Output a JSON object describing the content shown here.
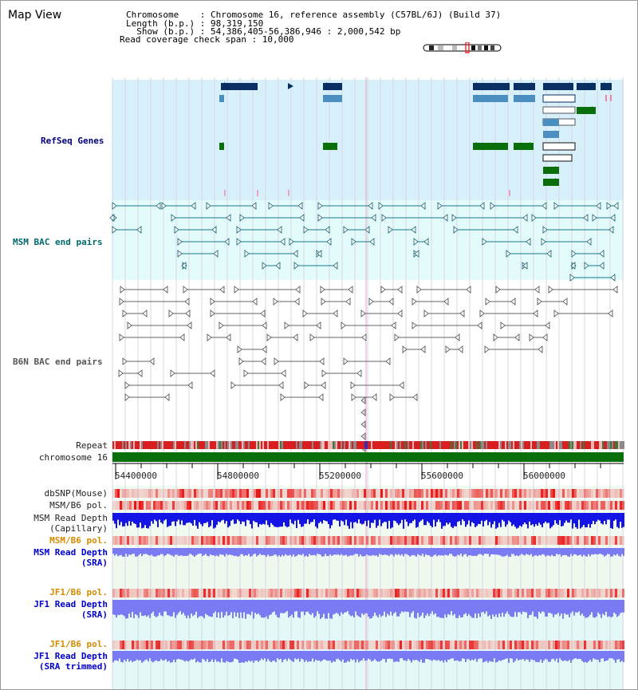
{
  "title": "Map View",
  "info_lines": [
    "Chromosome    : Chromosome 16, reference assembly (C57BL/6J) (Build 37)",
    "Length (b.p.) : 98,319,150",
    "  Show (b.p.) : 54,386,405-56,386,946 : 2,000,542 bp",
    "Read coverage check span : 10,000"
  ],
  "tracks": {
    "refseq": "RefSeq Genes",
    "msm_bac": "MSM BAC end pairs",
    "b6n_bac": "B6N BAC end pairs",
    "repeat": "Repeat",
    "chromosome": "chromosome 16",
    "dbsnp": "dbSNP(Mouse)",
    "msm_b6_pol": "MSM/B6 pol.",
    "msm_depth_cap_1": "MSM Read Depth",
    "msm_depth_cap_2": "(Capillary)",
    "msm_b6_pol_2": "MSM/B6 pol.",
    "msm_depth_sra_1": "MSM Read Depth",
    "msm_depth_sra_2": "(SRA)",
    "jf1_b6_pol": "JF1/B6 pol.",
    "jf1_depth_sra_1": "JF1 Read Depth",
    "jf1_depth_sra_2": "(SRA)",
    "jf1_b6_pol_2": "JF1/B6 pol.",
    "jf1_depth_trim_1": "JF1 Read Depth",
    "jf1_depth_trim_2": "(SRA trimmed)"
  },
  "ruler_ticks": [
    "54400000",
    "54800000",
    "55200000",
    "55600000",
    "56000000"
  ],
  "colors": {
    "refseq_bg": "#d8f0fa",
    "msm_bac_bg": "#e4fbfb",
    "navy": "#0a2f63",
    "steel": "#4a8fbf",
    "green": "#0a6e0a",
    "chromosome": "#0a6e0a",
    "snp_red": "#e81818",
    "depth_blue": "#1414e6",
    "depth_light": "#7a7af2"
  }
}
